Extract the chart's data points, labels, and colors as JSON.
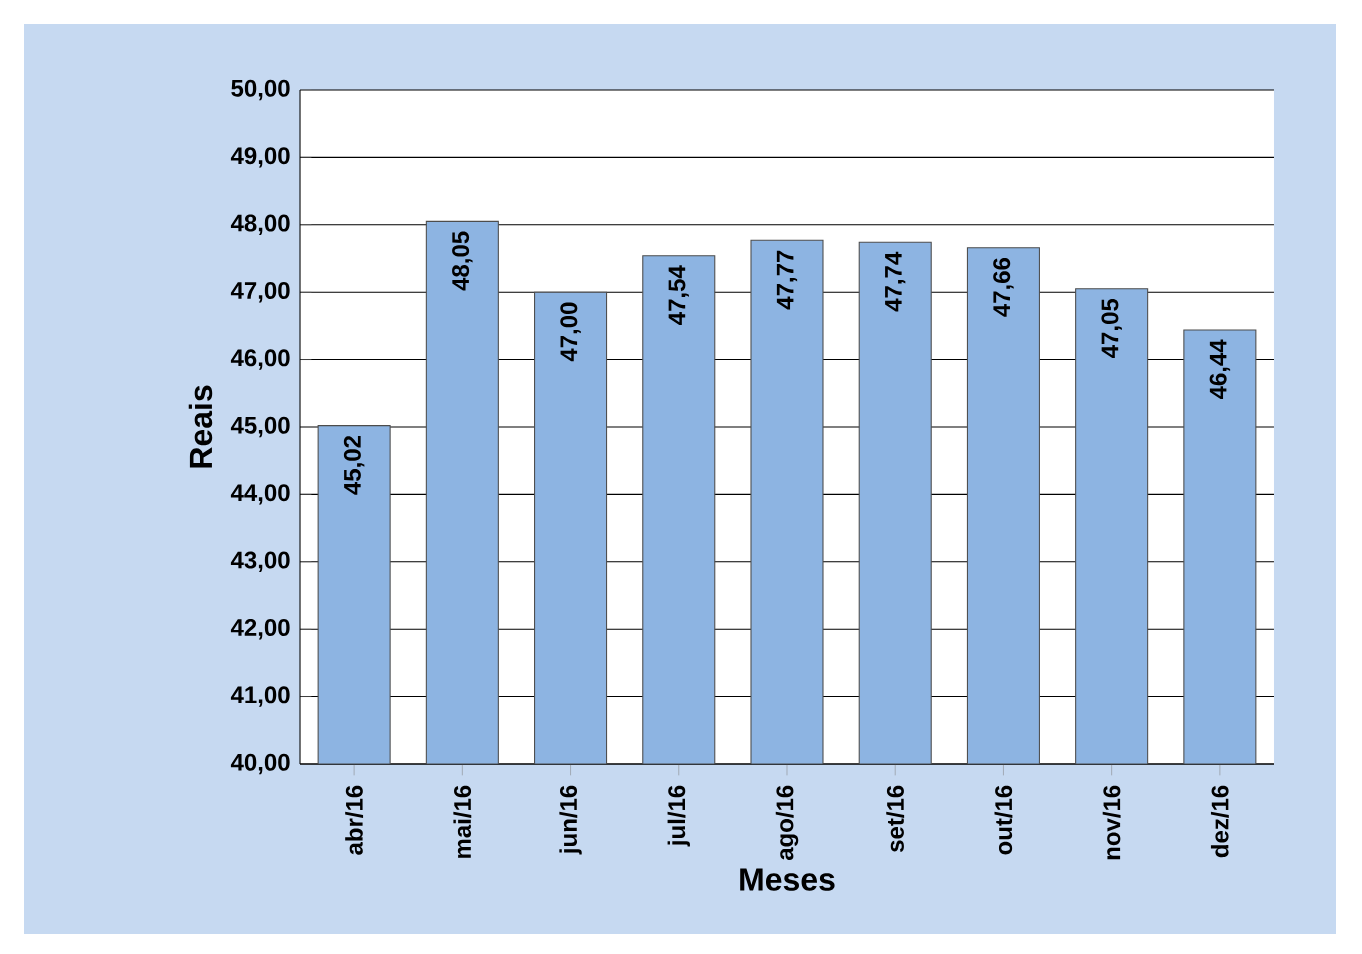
{
  "chart_data": {
    "type": "bar",
    "xlabel": "Meses",
    "ylabel": "Reais",
    "categories": [
      "abr/16",
      "mai/16",
      "jun/16",
      "jul/16",
      "ago/16",
      "set/16",
      "out/16",
      "nov/16",
      "dez/16"
    ],
    "values": [
      45.02,
      48.05,
      47.0,
      47.54,
      47.77,
      47.74,
      47.66,
      47.05,
      46.44
    ],
    "value_labels": [
      "45,02",
      "48,05",
      "47,00",
      "47,54",
      "47,77",
      "47,74",
      "47,66",
      "47,05",
      "46,44"
    ],
    "color": "#8db4e2",
    "ylim": [
      40,
      50
    ],
    "yticks": [
      {
        "value": 40,
        "label": "40,00"
      },
      {
        "value": 41,
        "label": "41,00"
      },
      {
        "value": 42,
        "label": "42,00"
      },
      {
        "value": 43,
        "label": "43,00"
      },
      {
        "value": 44,
        "label": "44,00"
      },
      {
        "value": 45,
        "label": "45,00"
      },
      {
        "value": 46,
        "label": "46,00"
      },
      {
        "value": 47,
        "label": "47,00"
      },
      {
        "value": 48,
        "label": "48,00"
      },
      {
        "value": 49,
        "label": "49,00"
      },
      {
        "value": 50,
        "label": "50,00"
      }
    ],
    "grid": "y"
  }
}
